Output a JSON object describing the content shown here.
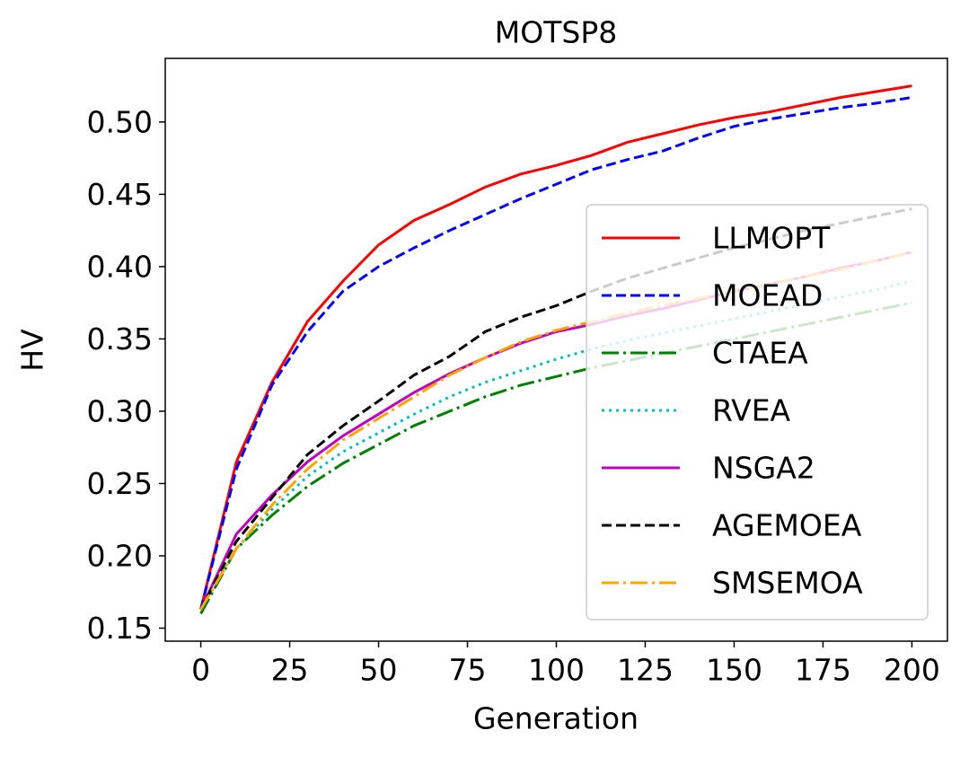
{
  "chart_data": {
    "type": "line",
    "title": "MOTSP8",
    "x_label": "Generation",
    "y_label": "HV",
    "x": [
      0,
      10,
      20,
      30,
      40,
      50,
      60,
      70,
      80,
      90,
      100,
      110,
      120,
      130,
      140,
      150,
      160,
      170,
      180,
      190,
      200
    ],
    "series": [
      {
        "name": "LLMOPT",
        "color": "#ff0000",
        "linestyle": "solid",
        "values": [
          0.163,
          0.265,
          0.32,
          0.362,
          0.39,
          0.415,
          0.432,
          0.443,
          0.455,
          0.464,
          0.47,
          0.477,
          0.486,
          0.492,
          0.498,
          0.503,
          0.507,
          0.512,
          0.517,
          0.521,
          0.525
        ]
      },
      {
        "name": "MOEAD",
        "color": "#0000ff",
        "linestyle": "dashed",
        "values": [
          0.163,
          0.26,
          0.318,
          0.355,
          0.383,
          0.4,
          0.413,
          0.425,
          0.436,
          0.447,
          0.457,
          0.467,
          0.474,
          0.48,
          0.489,
          0.497,
          0.502,
          0.506,
          0.51,
          0.513,
          0.517
        ]
      },
      {
        "name": "CTAEA",
        "color": "#008000",
        "linestyle": "dashdot",
        "values": [
          0.16,
          0.205,
          0.228,
          0.248,
          0.264,
          0.277,
          0.29,
          0.3,
          0.31,
          0.318,
          0.324,
          0.33,
          0.335,
          0.34,
          0.345,
          0.35,
          0.355,
          0.36,
          0.365,
          0.37,
          0.375
        ]
      },
      {
        "name": "RVEA",
        "color": "#00bfbf",
        "linestyle": "dotted",
        "values": [
          0.163,
          0.205,
          0.232,
          0.255,
          0.272,
          0.285,
          0.298,
          0.31,
          0.32,
          0.328,
          0.336,
          0.343,
          0.349,
          0.354,
          0.359,
          0.364,
          0.369,
          0.374,
          0.379,
          0.384,
          0.39
        ]
      },
      {
        "name": "NSGA2",
        "color": "#bf00bf",
        "linestyle": "solid",
        "values": [
          0.163,
          0.215,
          0.242,
          0.265,
          0.283,
          0.298,
          0.313,
          0.326,
          0.337,
          0.347,
          0.355,
          0.36,
          0.366,
          0.371,
          0.377,
          0.383,
          0.388,
          0.393,
          0.399,
          0.404,
          0.41
        ]
      },
      {
        "name": "AGEMOEA",
        "color": "#000000",
        "linestyle": "dashed",
        "values": [
          0.163,
          0.21,
          0.24,
          0.27,
          0.29,
          0.307,
          0.325,
          0.338,
          0.355,
          0.365,
          0.373,
          0.383,
          0.392,
          0.399,
          0.406,
          0.413,
          0.419,
          0.425,
          0.43,
          0.435,
          0.44
        ]
      },
      {
        "name": "SMSEMOA",
        "color": "#ffa500",
        "linestyle": "dashdot",
        "values": [
          0.163,
          0.205,
          0.235,
          0.26,
          0.28,
          0.295,
          0.31,
          0.325,
          0.337,
          0.348,
          0.356,
          0.362,
          0.368,
          0.373,
          0.378,
          0.383,
          0.388,
          0.393,
          0.398,
          0.404,
          0.41
        ]
      }
    ],
    "xlim": [
      -10,
      210
    ],
    "ylim": [
      0.141,
      0.544
    ],
    "xticks": [
      0,
      25,
      50,
      75,
      100,
      125,
      150,
      175,
      200
    ],
    "yticks": [
      0.15,
      {
        "value": 0.2,
        "label": "0.20"
      },
      0.25,
      {
        "value": 0.3,
        "label": "0.30"
      },
      0.35,
      {
        "value": 0.4,
        "label": "0.40"
      },
      0.45,
      {
        "value": 0.5,
        "label": "0.50"
      }
    ],
    "grid": false,
    "legend": "lower right"
  }
}
